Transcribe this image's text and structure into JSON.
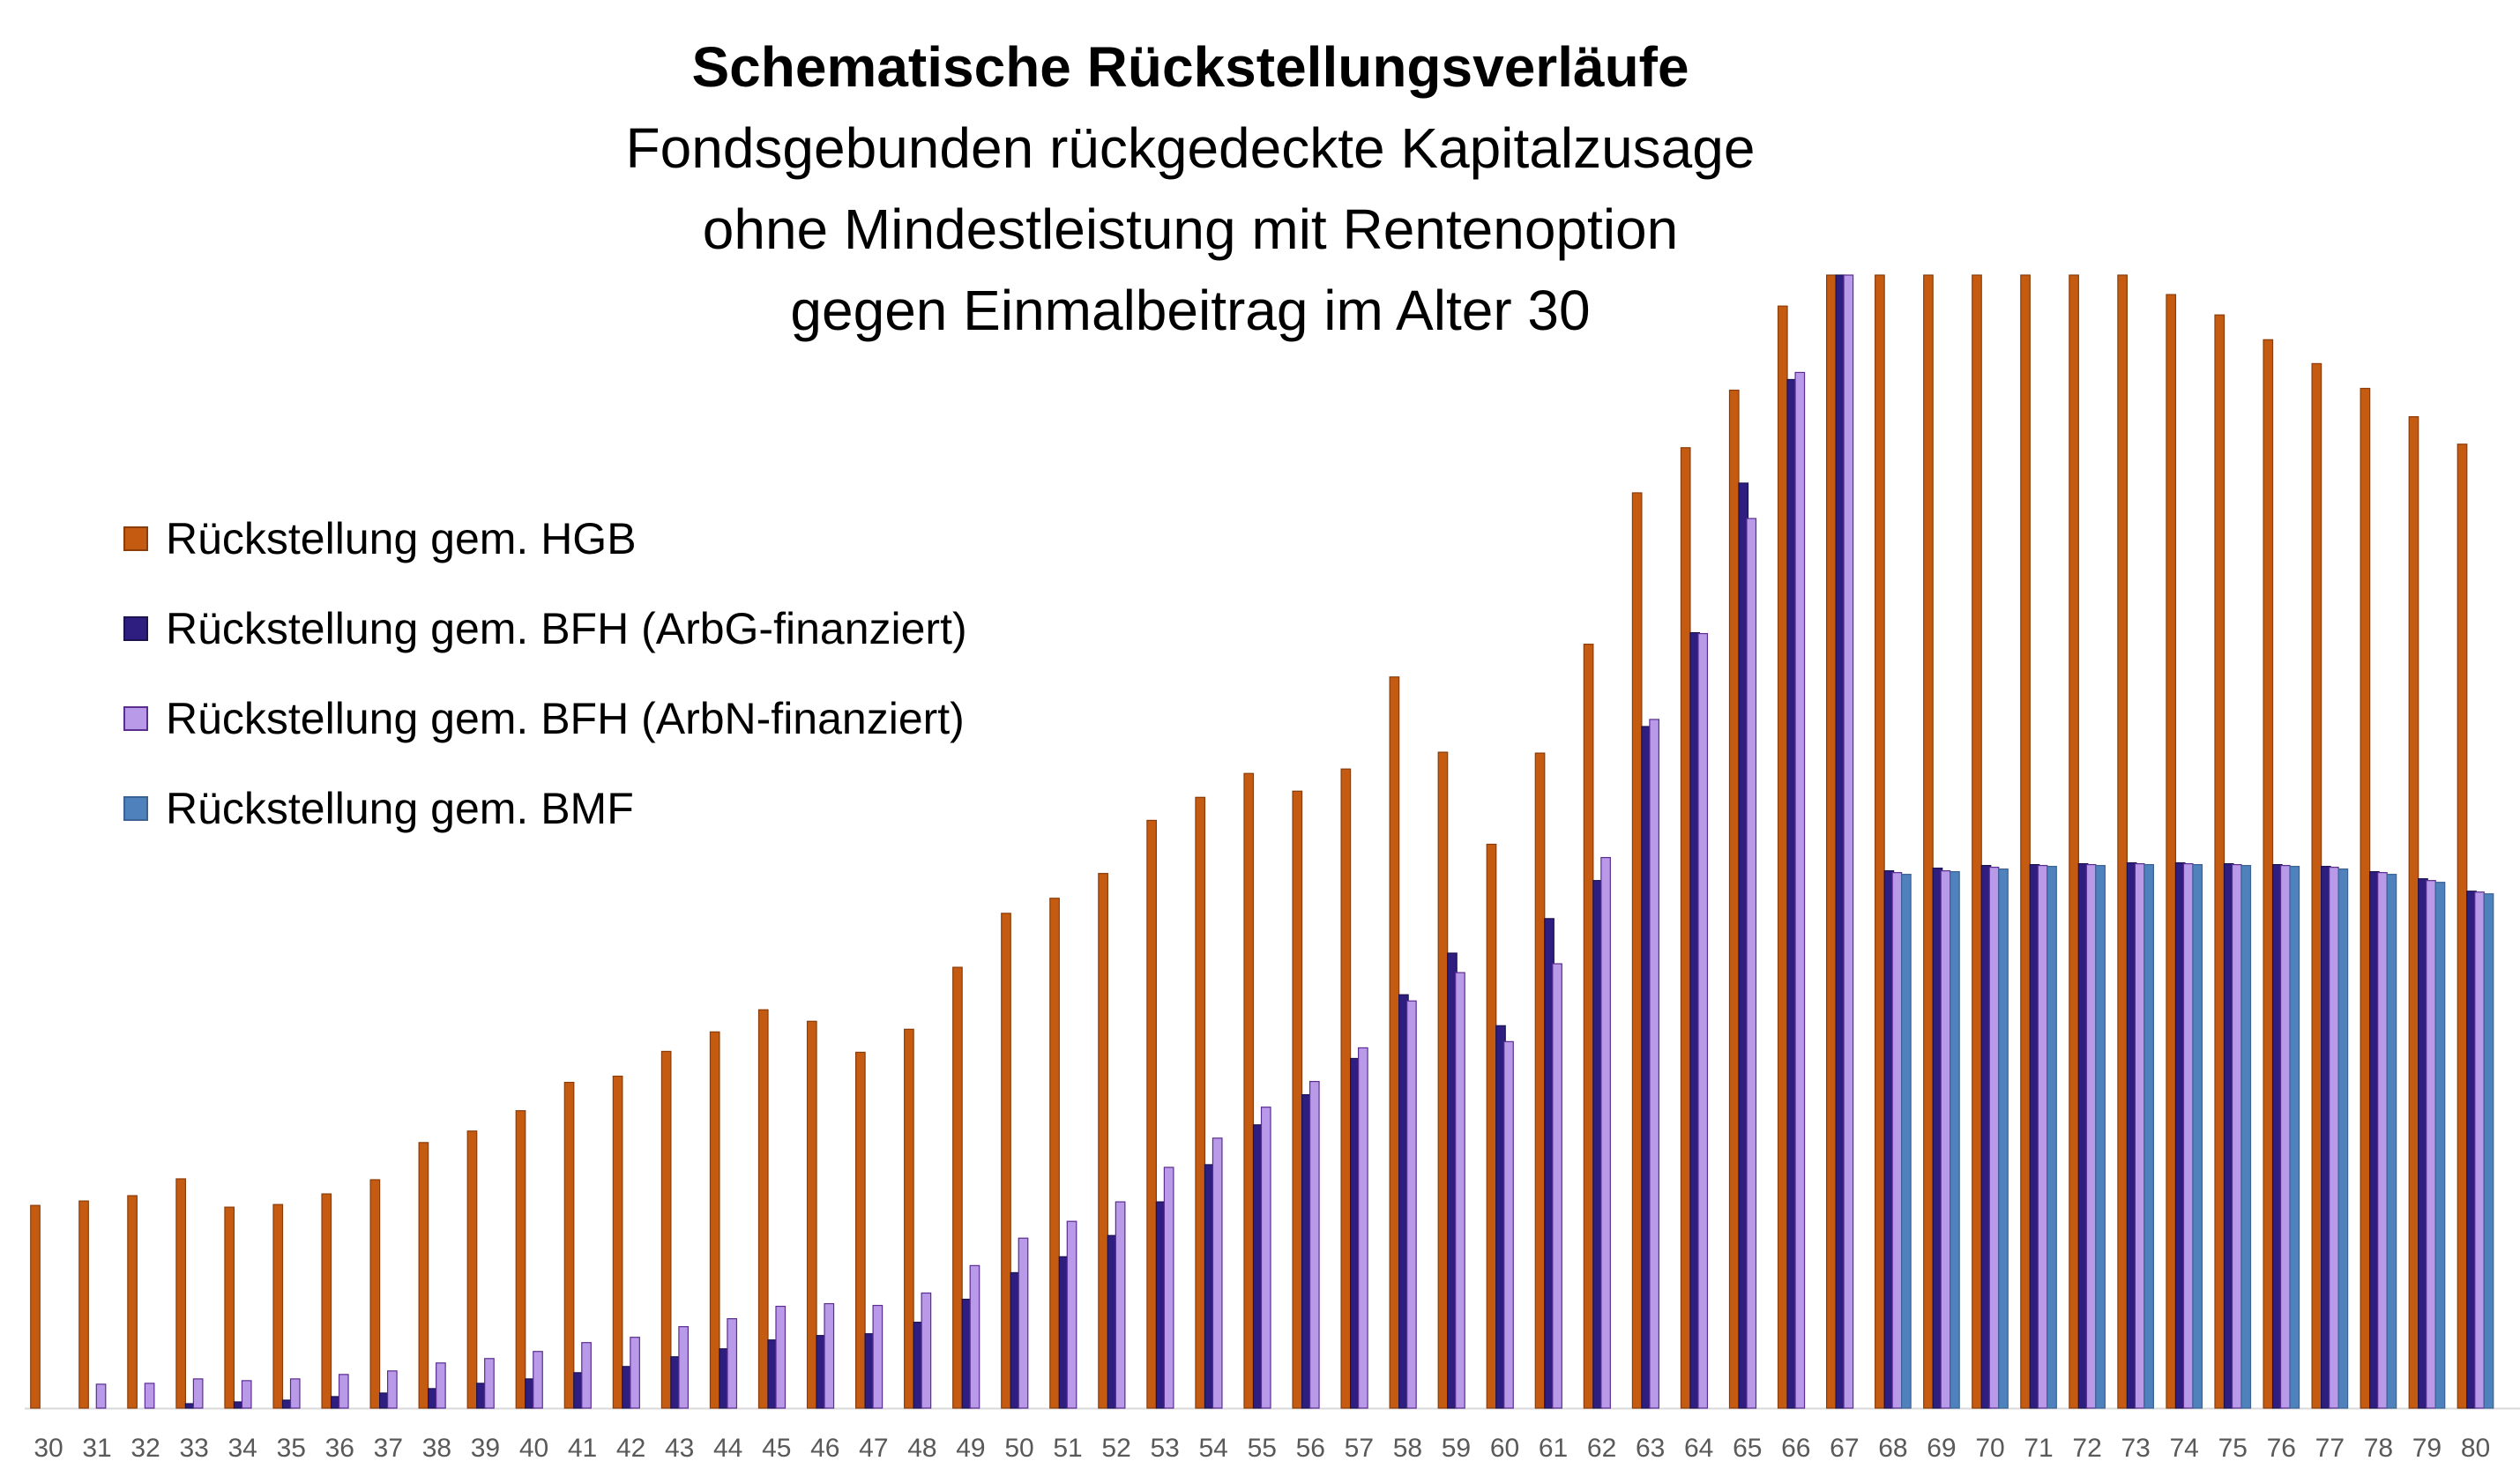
{
  "chart_data": {
    "type": "bar",
    "title": "Schematische Rückstellungsverläufe",
    "subtitle_lines": [
      "Fondsgebunden rückgedeckte Kapitalzusage",
      "ohne Mindestleistung mit Rentenoption",
      "gegen Einmalbeitrag im Alter 30"
    ],
    "categories": [
      "30",
      "31",
      "32",
      "33",
      "34",
      "35",
      "36",
      "37",
      "38",
      "39",
      "40",
      "41",
      "42",
      "43",
      "44",
      "45",
      "46",
      "47",
      "48",
      "49",
      "50",
      "51",
      "52",
      "53",
      "54",
      "55",
      "56",
      "57",
      "58",
      "59",
      "60",
      "61",
      "62",
      "63",
      "64",
      "65",
      "66",
      "67",
      "68",
      "69",
      "70",
      "71",
      "72",
      "73",
      "74",
      "75",
      "76",
      "77",
      "78",
      "79",
      "80"
    ],
    "ylim": [
      0,
      1280
    ],
    "grid": false,
    "legend_position": "left",
    "series": [
      {
        "name": "Rückstellung gem. HGB",
        "color": "#C55A11",
        "values": [
          229,
          234,
          240,
          259,
          227,
          230,
          242,
          258,
          300,
          313,
          336,
          368,
          375,
          403,
          425,
          450,
          437,
          402,
          428,
          498,
          559,
          576,
          604,
          664,
          690,
          717,
          697,
          722,
          826,
          741,
          637,
          740,
          863,
          1034,
          1085,
          1150,
          1245,
          1300,
          1300,
          1300,
          1300,
          1300,
          1300,
          1300,
          1258,
          1235,
          1207,
          1180,
          1152,
          1120,
          1089
        ]
      },
      {
        "name": "Rückstellung gem. BFH (ArbG-finanziert)",
        "color": "#2E1E80",
        "values": [
          0,
          0,
          0,
          5,
          7,
          9,
          13,
          17,
          22,
          28,
          33,
          40,
          47,
          58,
          67,
          77,
          82,
          84,
          97,
          123,
          153,
          171,
          195,
          233,
          275,
          320,
          354,
          395,
          467,
          514,
          432,
          553,
          596,
          770,
          876,
          1045,
          1162,
          1300,
          607,
          610,
          613,
          614,
          615,
          616,
          616,
          615,
          614,
          612,
          606,
          598,
          584
        ]
      },
      {
        "name": "Rückstellung gem. BFH (ArbN-finanziert)",
        "color": "#B99AE8",
        "values": [
          0,
          27,
          28,
          33,
          31,
          33,
          38,
          42,
          51,
          56,
          64,
          74,
          80,
          92,
          101,
          115,
          118,
          116,
          130,
          161,
          192,
          211,
          233,
          272,
          305,
          340,
          369,
          407,
          460,
          492,
          414,
          502,
          622,
          778,
          875,
          1005,
          1170,
          1300,
          605,
          607,
          611,
          613,
          614,
          615,
          615,
          614,
          613,
          611,
          605,
          596,
          583
        ]
      },
      {
        "name": "Rückstellung gem. BMF",
        "color": "#4F81BD",
        "values": [
          0,
          0,
          0,
          0,
          0,
          0,
          0,
          0,
          0,
          0,
          0,
          0,
          0,
          0,
          0,
          0,
          0,
          0,
          0,
          0,
          0,
          0,
          0,
          0,
          0,
          0,
          0,
          0,
          0,
          0,
          0,
          0,
          0,
          0,
          0,
          0,
          0,
          0,
          603,
          606,
          609,
          612,
          613,
          614,
          614,
          613,
          612,
          609,
          603,
          594,
          581
        ]
      }
    ]
  }
}
